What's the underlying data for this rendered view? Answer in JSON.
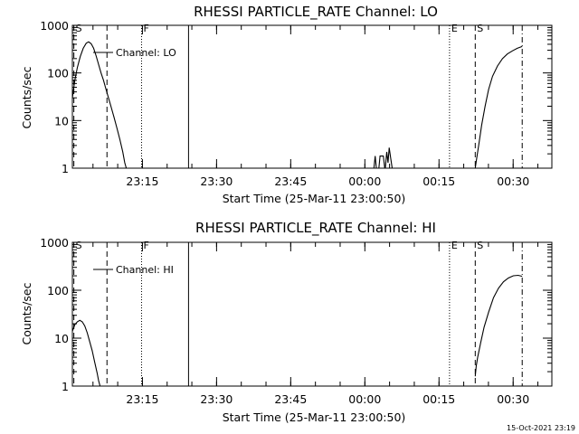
{
  "footer": {
    "stamp": "15-Oct-2021 23:19"
  },
  "chart_data": [
    {
      "type": "line",
      "title": "RHESSI PARTICLE_RATE Channel: LO",
      "xlabel": "Start Time (25-Mar-11 23:00:50)",
      "ylabel": "Counts/sec",
      "x_unit": "minutes after 23:00:50",
      "xlim": [
        0,
        97
      ],
      "ylim": [
        1,
        1000
      ],
      "y_scale": "log",
      "grid": false,
      "legend_position": "top-left",
      "x_ticks": [
        {
          "label": "23:15",
          "x": 14.17
        },
        {
          "label": "23:30",
          "x": 29.17
        },
        {
          "label": "23:45",
          "x": 44.17
        },
        {
          "label": "00:00",
          "x": 59.17
        },
        {
          "label": "00:15",
          "x": 74.17
        },
        {
          "label": "00:30",
          "x": 89.17
        }
      ],
      "y_ticks": [
        {
          "label": "1",
          "y": 1
        },
        {
          "label": "10",
          "y": 10
        },
        {
          "label": "100",
          "y": 100
        },
        {
          "label": "1000",
          "y": 1000
        }
      ],
      "markers": [
        {
          "label": "S",
          "x": 0.3,
          "style": "dashed"
        },
        {
          "label": "",
          "x": 7.0,
          "style": "dashed"
        },
        {
          "label": "F",
          "x": 14.0,
          "style": "dotted"
        },
        {
          "label": "",
          "x": 23.5,
          "style": "solid"
        },
        {
          "label": "E",
          "x": 76.3,
          "style": "dotted"
        },
        {
          "label": "S",
          "x": 81.5,
          "style": "dashed"
        },
        {
          "label": "",
          "x": 91.0,
          "style": "dashdot"
        }
      ],
      "series": [
        {
          "name": "Channel: LO",
          "segments": [
            [
              [
                0,
                30
              ],
              [
                0.5,
                70
              ],
              [
                1,
                130
              ],
              [
                1.6,
                220
              ],
              [
                2.2,
                330
              ],
              [
                2.8,
                420
              ],
              [
                3.3,
                450
              ],
              [
                3.8,
                410
              ],
              [
                4.3,
                330
              ],
              [
                4.8,
                230
              ],
              [
                5.3,
                150
              ],
              [
                5.8,
                100
              ],
              [
                6.3,
                70
              ],
              [
                6.8,
                45
              ],
              [
                7.3,
                30
              ],
              [
                7.8,
                20
              ],
              [
                8.4,
                12
              ],
              [
                9,
                7
              ],
              [
                9.6,
                4
              ],
              [
                10.2,
                2.2
              ],
              [
                10.6,
                1.3
              ],
              [
                10.9,
                1
              ]
            ],
            [
              [
                61,
                1
              ],
              [
                61.25,
                1.8
              ],
              [
                61.5,
                1
              ]
            ],
            [
              [
                62,
                1
              ],
              [
                62.25,
                1.8
              ],
              [
                62.9,
                1.8
              ],
              [
                63.2,
                1
              ]
            ],
            [
              [
                63.3,
                1
              ],
              [
                63.6,
                2.2
              ],
              [
                63.85,
                1.3
              ],
              [
                64.1,
                2.7
              ],
              [
                64.4,
                1.6
              ],
              [
                64.7,
                1
              ]
            ],
            [
              [
                81.5,
                1
              ],
              [
                81.8,
                1.6
              ],
              [
                82.2,
                3
              ],
              [
                82.8,
                8
              ],
              [
                83.5,
                20
              ],
              [
                84.2,
                45
              ],
              [
                85,
                85
              ],
              [
                86,
                140
              ],
              [
                87,
                200
              ],
              [
                88,
                250
              ],
              [
                89,
                290
              ],
              [
                90,
                330
              ],
              [
                91,
                360
              ]
            ]
          ]
        }
      ]
    },
    {
      "type": "line",
      "title": "RHESSI PARTICLE_RATE Channel: HI",
      "xlabel": "Start Time (25-Mar-11 23:00:50)",
      "ylabel": "Counts/sec",
      "x_unit": "minutes after 23:00:50",
      "xlim": [
        0,
        97
      ],
      "ylim": [
        1,
        1000
      ],
      "y_scale": "log",
      "grid": false,
      "legend_position": "top-left",
      "x_ticks": [
        {
          "label": "23:15",
          "x": 14.17
        },
        {
          "label": "23:30",
          "x": 29.17
        },
        {
          "label": "23:45",
          "x": 44.17
        },
        {
          "label": "00:00",
          "x": 59.17
        },
        {
          "label": "00:15",
          "x": 74.17
        },
        {
          "label": "00:30",
          "x": 89.17
        }
      ],
      "y_ticks": [
        {
          "label": "1",
          "y": 1
        },
        {
          "label": "10",
          "y": 10
        },
        {
          "label": "100",
          "y": 100
        },
        {
          "label": "1000",
          "y": 1000
        }
      ],
      "markers": [
        {
          "label": "S",
          "x": 0.3,
          "style": "dashed"
        },
        {
          "label": "",
          "x": 7.0,
          "style": "dashed"
        },
        {
          "label": "F",
          "x": 14.0,
          "style": "dotted"
        },
        {
          "label": "",
          "x": 23.5,
          "style": "solid"
        },
        {
          "label": "E",
          "x": 76.3,
          "style": "dotted"
        },
        {
          "label": "S",
          "x": 81.5,
          "style": "dashed"
        },
        {
          "label": "",
          "x": 91.0,
          "style": "dashdot"
        }
      ],
      "series": [
        {
          "name": "Channel: HI",
          "segments": [
            [
              [
                0,
                14
              ],
              [
                0.5,
                19
              ],
              [
                1,
                22
              ],
              [
                1.5,
                23.5
              ],
              [
                2,
                22
              ],
              [
                2.5,
                18
              ],
              [
                3,
                13
              ],
              [
                3.5,
                8.5
              ],
              [
                4,
                5.5
              ],
              [
                4.5,
                3.2
              ],
              [
                5,
                1.9
              ],
              [
                5.3,
                1.3
              ],
              [
                5.6,
                1
              ]
            ],
            [
              [
                81.5,
                1.6
              ],
              [
                81.7,
                2.6
              ],
              [
                82,
                4
              ],
              [
                82.6,
                8
              ],
              [
                83.3,
                17
              ],
              [
                84.2,
                35
              ],
              [
                85.2,
                70
              ],
              [
                86.2,
                110
              ],
              [
                87.2,
                150
              ],
              [
                88.2,
                180
              ],
              [
                89.2,
                200
              ],
              [
                90.2,
                205
              ],
              [
                91,
                195
              ]
            ]
          ]
        }
      ]
    }
  ]
}
